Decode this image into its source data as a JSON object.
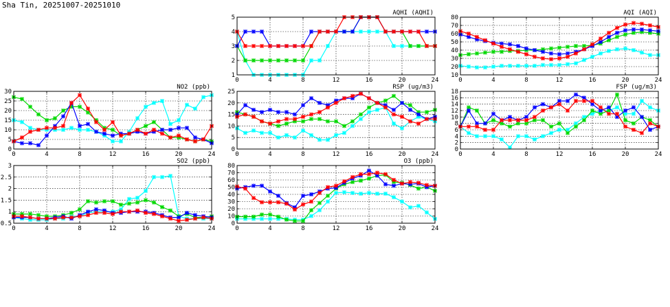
{
  "page_title": "Sha Tin, 20251007-20251010",
  "colors": {
    "day1": "#00ffff",
    "day2": "#00d800",
    "day3": "#0000ff",
    "day4": "#ff0000"
  },
  "chart_data": [
    {
      "id": "aqhi",
      "type": "line",
      "title": "AQHI (AQHI)",
      "xlim": [
        0,
        24
      ],
      "xticks": [
        0,
        4,
        8,
        12,
        16,
        20,
        24
      ],
      "ylim": [
        1,
        5
      ],
      "yticks": [
        1,
        2,
        3,
        4,
        5
      ],
      "grid": true,
      "x": [
        0,
        1,
        2,
        3,
        4,
        5,
        6,
        7,
        8,
        9,
        10,
        11,
        12,
        13,
        14,
        15,
        16,
        17,
        18,
        19,
        20,
        21,
        22,
        23,
        24
      ],
      "series": [
        {
          "color": "#00ffff",
          "values": [
            4,
            2,
            1,
            1,
            1,
            1,
            1,
            1,
            1,
            2,
            2,
            3,
            4,
            4,
            4,
            4,
            4,
            4,
            4,
            3,
            3,
            3,
            3,
            3,
            3
          ]
        },
        {
          "color": "#00d800",
          "values": [
            3,
            2,
            2,
            2,
            2,
            2,
            2,
            2,
            2,
            3,
            4,
            4,
            4,
            4,
            4,
            5,
            5,
            5,
            4,
            4,
            4,
            3,
            3,
            3,
            3
          ]
        },
        {
          "color": "#0000ff",
          "values": [
            3,
            4,
            4,
            4,
            3,
            3,
            3,
            3,
            3,
            4,
            4,
            4,
            4,
            4,
            4,
            5,
            5,
            5,
            4,
            4,
            4,
            4,
            4,
            4,
            4
          ]
        },
        {
          "color": "#ff0000",
          "values": [
            4,
            3,
            3,
            3,
            3,
            3,
            3,
            3,
            3,
            3,
            4,
            4,
            4,
            5,
            5,
            5,
            5,
            5,
            4,
            4,
            4,
            4,
            4,
            3,
            3
          ]
        }
      ]
    },
    {
      "id": "aqi",
      "type": "line",
      "title": "AQI (AQI)",
      "xlim": [
        0,
        24
      ],
      "xticks": [
        0,
        4,
        8,
        12,
        16,
        20,
        24
      ],
      "ylim": [
        10,
        80
      ],
      "yticks": [
        10,
        20,
        30,
        40,
        50,
        60,
        70,
        80
      ],
      "grid": true,
      "x": [
        0,
        1,
        2,
        3,
        4,
        5,
        6,
        7,
        8,
        9,
        10,
        11,
        12,
        13,
        14,
        15,
        16,
        17,
        18,
        19,
        20,
        21,
        22,
        23,
        24
      ],
      "series": [
        {
          "color": "#00ffff",
          "values": [
            21,
            20,
            19,
            19,
            20,
            21,
            21,
            21,
            21,
            21,
            22,
            22,
            22,
            23,
            24,
            28,
            32,
            36,
            39,
            41,
            42,
            40,
            37,
            34,
            34
          ]
        },
        {
          "color": "#00d800",
          "values": [
            34,
            35,
            36,
            37,
            38,
            38,
            39,
            39,
            40,
            40,
            41,
            42,
            43,
            44,
            45,
            45,
            46,
            48,
            52,
            56,
            59,
            61,
            62,
            61,
            60
          ]
        },
        {
          "color": "#0000ff",
          "values": [
            59,
            56,
            53,
            51,
            49,
            48,
            47,
            45,
            42,
            40,
            38,
            36,
            35,
            36,
            38,
            41,
            45,
            50,
            56,
            61,
            64,
            65,
            65,
            64,
            63
          ]
        },
        {
          "color": "#ff0000",
          "values": [
            63,
            60,
            56,
            52,
            48,
            44,
            41,
            38,
            35,
            32,
            30,
            29,
            30,
            32,
            36,
            41,
            47,
            54,
            61,
            67,
            71,
            73,
            72,
            70,
            68
          ]
        }
      ]
    },
    {
      "id": "no2",
      "type": "line",
      "title": "NO2 (ppb)",
      "xlim": [
        0,
        24
      ],
      "xticks": [
        0,
        4,
        8,
        12,
        16,
        20,
        24
      ],
      "ylim": [
        0,
        30
      ],
      "yticks": [
        0,
        5,
        10,
        15,
        20,
        25,
        30
      ],
      "grid": true,
      "x": [
        0,
        1,
        2,
        3,
        4,
        5,
        6,
        7,
        8,
        9,
        10,
        11,
        12,
        13,
        14,
        15,
        16,
        17,
        18,
        19,
        20,
        21,
        22,
        23,
        24
      ],
      "series": [
        {
          "color": "#00ffff",
          "values": [
            15,
            14,
            11,
            10,
            10,
            10,
            10,
            11,
            10,
            10,
            9,
            7,
            4,
            4,
            9,
            16,
            22,
            24,
            25,
            13,
            15,
            23,
            21,
            27,
            28
          ]
        },
        {
          "color": "#00d800",
          "values": [
            27,
            26,
            22,
            18,
            15,
            16,
            20,
            22,
            22,
            19,
            15,
            11,
            10,
            7,
            8,
            10,
            12,
            14,
            10,
            6,
            6,
            5,
            4,
            5,
            4
          ]
        },
        {
          "color": "#0000ff",
          "values": [
            4,
            3,
            3,
            2,
            7,
            12,
            17,
            24,
            12,
            13,
            9,
            8,
            7,
            8,
            8,
            9,
            8,
            9,
            10,
            10,
            11,
            11,
            6,
            5,
            3
          ]
        },
        {
          "color": "#ff0000",
          "values": [
            4,
            6,
            9,
            10,
            11,
            11,
            12,
            24,
            28,
            21,
            14,
            10,
            14,
            7,
            8,
            10,
            8,
            10,
            8,
            6,
            7,
            5,
            4,
            5,
            12
          ]
        }
      ]
    },
    {
      "id": "rsp",
      "type": "line",
      "title": "RSP (ug/m3)",
      "xlim": [
        0,
        24
      ],
      "xticks": [
        0,
        4,
        8,
        12,
        16,
        20,
        24
      ],
      "ylim": [
        0,
        25
      ],
      "yticks": [
        0,
        5,
        10,
        15,
        20,
        25
      ],
      "grid": true,
      "x": [
        0,
        1,
        2,
        3,
        4,
        5,
        6,
        7,
        8,
        9,
        10,
        11,
        12,
        13,
        14,
        15,
        16,
        17,
        18,
        19,
        20,
        21,
        22,
        23,
        24
      ],
      "series": [
        {
          "color": "#00ffff",
          "values": [
            9,
            7,
            8,
            7,
            7,
            5,
            6,
            5,
            8,
            6,
            4,
            4,
            6,
            7,
            10,
            13,
            16,
            17,
            18,
            11,
            9,
            12,
            14,
            13,
            12
          ]
        },
        {
          "color": "#00d800",
          "values": [
            16,
            15,
            14,
            12,
            11,
            10,
            11,
            12,
            12,
            13,
            13,
            12,
            12,
            10,
            12,
            15,
            18,
            20,
            21,
            23,
            20,
            19,
            16,
            16,
            17
          ]
        },
        {
          "color": "#0000ff",
          "values": [
            15,
            19,
            17,
            16,
            17,
            16,
            16,
            15,
            19,
            22,
            20,
            19,
            21,
            22,
            22,
            24,
            22,
            20,
            19,
            17,
            20,
            17,
            15,
            13,
            14
          ]
        },
        {
          "color": "#ff0000",
          "values": [
            14,
            15,
            14,
            12,
            11,
            12,
            13,
            13,
            14,
            15,
            16,
            18,
            20,
            22,
            23,
            24,
            22,
            20,
            18,
            15,
            14,
            12,
            11,
            13,
            13
          ]
        }
      ]
    },
    {
      "id": "fsp",
      "type": "line",
      "title": "FSP (ug/m3)",
      "xlim": [
        0,
        24
      ],
      "xticks": [
        0,
        4,
        8,
        12,
        16,
        20,
        24
      ],
      "ylim": [
        0,
        18
      ],
      "yticks": [
        0,
        2,
        4,
        6,
        8,
        10,
        12,
        14,
        16,
        18
      ],
      "grid": true,
      "x": [
        0,
        1,
        2,
        3,
        4,
        5,
        6,
        7,
        8,
        9,
        10,
        11,
        12,
        13,
        14,
        15,
        16,
        17,
        18,
        19,
        20,
        21,
        22,
        23,
        24
      ],
      "series": [
        {
          "color": "#00ffff",
          "values": [
            7,
            5,
            4,
            4,
            4,
            3,
            0.5,
            4,
            4,
            3,
            4,
            5,
            6,
            6,
            8,
            10,
            11,
            12,
            12,
            13,
            11,
            11,
            15,
            13,
            12
          ]
        },
        {
          "color": "#00d800",
          "values": [
            7,
            13,
            12,
            8,
            9,
            8,
            7,
            8,
            8,
            9,
            9,
            7,
            8,
            5,
            7,
            9,
            12,
            11,
            12,
            17,
            9,
            8,
            10,
            9,
            7
          ]
        },
        {
          "color": "#0000ff",
          "values": [
            7,
            12,
            8,
            8,
            11,
            9,
            10,
            9,
            10,
            13,
            14,
            13,
            15,
            15,
            17,
            16,
            14,
            12,
            13,
            10,
            12,
            13,
            10,
            6,
            7
          ]
        },
        {
          "color": "#ff0000",
          "values": [
            7,
            7,
            7,
            6,
            6,
            9,
            9,
            9,
            9,
            10,
            12,
            13,
            14,
            12,
            15,
            15,
            15,
            13,
            11,
            11,
            7,
            6,
            5,
            8,
            7
          ]
        }
      ]
    },
    {
      "id": "so2",
      "type": "line",
      "title": "SO2 (ppb)",
      "xlim": [
        0,
        24
      ],
      "xticks": [
        0,
        4,
        8,
        12,
        16,
        20,
        24
      ],
      "ylim": [
        0.5,
        3.0
      ],
      "yticks": [
        0.5,
        1.0,
        1.5,
        2.0,
        2.5,
        3.0
      ],
      "grid": true,
      "x": [
        0,
        1,
        2,
        3,
        4,
        5,
        6,
        7,
        8,
        9,
        10,
        11,
        12,
        13,
        14,
        15,
        16,
        17,
        18,
        19,
        20,
        21,
        22,
        23,
        24
      ],
      "series": [
        {
          "color": "#00ffff",
          "values": [
            0.75,
            0.7,
            0.65,
            0.65,
            0.65,
            0.7,
            0.7,
            0.8,
            0.8,
            0.95,
            1.0,
            1.0,
            1.0,
            1.1,
            1.55,
            1.6,
            1.9,
            2.5,
            2.5,
            2.55,
            0.8,
            0.7,
            0.7,
            0.7,
            0.7
          ]
        },
        {
          "color": "#00d800",
          "values": [
            0.9,
            0.9,
            0.9,
            0.85,
            0.8,
            0.8,
            0.85,
            0.95,
            1.1,
            1.45,
            1.4,
            1.45,
            1.45,
            1.3,
            1.35,
            1.4,
            1.5,
            1.4,
            1.2,
            1.05,
            0.8,
            0.9,
            0.75,
            0.75,
            0.8
          ]
        },
        {
          "color": "#0000ff",
          "values": [
            0.75,
            0.75,
            0.75,
            0.7,
            0.7,
            0.75,
            0.8,
            0.7,
            0.85,
            1.0,
            1.1,
            1.05,
            0.95,
            0.95,
            1.0,
            1.0,
            1.0,
            0.95,
            0.85,
            0.75,
            0.75,
            0.95,
            0.85,
            0.8,
            0.75
          ]
        },
        {
          "color": "#ff0000",
          "values": [
            0.8,
            0.8,
            0.75,
            0.7,
            0.7,
            0.7,
            0.75,
            0.75,
            0.8,
            0.85,
            0.95,
            0.95,
            0.9,
            1.0,
            1.0,
            1.05,
            0.95,
            0.9,
            0.8,
            0.7,
            0.6,
            0.65,
            0.7,
            0.75,
            0.7
          ]
        }
      ]
    },
    {
      "id": "o3",
      "type": "line",
      "title": "O3 (ppb)",
      "xlim": [
        0,
        24
      ],
      "xticks": [
        0,
        4,
        8,
        12,
        16,
        20,
        24
      ],
      "ylim": [
        0,
        80
      ],
      "yticks": [
        0,
        10,
        20,
        30,
        40,
        50,
        60,
        70,
        80
      ],
      "grid": true,
      "x": [
        0,
        1,
        2,
        3,
        4,
        5,
        6,
        7,
        8,
        9,
        10,
        11,
        12,
        13,
        14,
        15,
        16,
        17,
        18,
        19,
        20,
        21,
        22,
        23,
        24
      ],
      "series": [
        {
          "color": "#00ffff",
          "values": [
            6,
            6,
            6,
            6,
            6,
            6,
            6,
            5,
            5,
            10,
            18,
            30,
            42,
            43,
            42,
            41,
            42,
            41,
            41,
            36,
            30,
            22,
            24,
            15,
            6
          ]
        },
        {
          "color": "#00d800",
          "values": [
            9,
            9,
            9,
            12,
            12,
            9,
            5,
            3,
            3,
            18,
            28,
            38,
            48,
            54,
            57,
            59,
            62,
            66,
            67,
            57,
            56,
            53,
            48,
            50,
            45
          ]
        },
        {
          "color": "#0000ff",
          "values": [
            48,
            50,
            52,
            52,
            44,
            38,
            28,
            22,
            38,
            40,
            44,
            48,
            49,
            56,
            62,
            66,
            73,
            66,
            54,
            52,
            55,
            54,
            55,
            50,
            52
          ]
        },
        {
          "color": "#ff0000",
          "values": [
            51,
            48,
            35,
            29,
            29,
            29,
            27,
            19,
            26,
            30,
            42,
            50,
            52,
            58,
            64,
            68,
            68,
            70,
            68,
            60,
            55,
            57,
            56,
            53,
            52
          ]
        }
      ]
    }
  ]
}
